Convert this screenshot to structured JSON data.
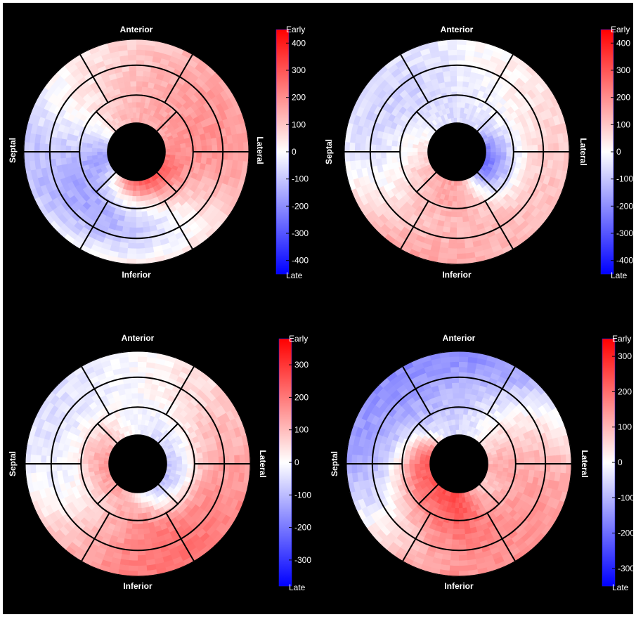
{
  "colors": {
    "background": "#000000",
    "early": "#ff0000",
    "late": "#0000ff",
    "neutral": "#ffffff",
    "segment_lines": "#000000"
  },
  "icons": [
    "bullseye-polar-map",
    "colorbar"
  ],
  "panels": [
    {
      "labels": {
        "anterior": "Anterior",
        "inferior": "Inferior",
        "septal": "Septal",
        "lateral": "Lateral"
      },
      "colorbar": {
        "top": "Early",
        "bottom": "Late",
        "ticks": [
          "400",
          "300",
          "200",
          "100",
          "0",
          "-100",
          "-200",
          "-300",
          "-400"
        ],
        "max": 450
      },
      "footer": "",
      "blobs": [
        {
          "a": 100,
          "w": 60,
          "r": 0.7,
          "v": -430
        },
        {
          "a": 115,
          "w": 60,
          "r": 0.8,
          "v": -380
        },
        {
          "a": 130,
          "w": 55,
          "r": 0.9,
          "v": -300
        },
        {
          "a": 150,
          "w": 90,
          "r": 0.8,
          "v": -110
        },
        {
          "a": 165,
          "w": 40,
          "r": 0.4,
          "v": -300
        },
        {
          "a": 200,
          "w": 60,
          "r": 0.6,
          "v": 20
        },
        {
          "a": 250,
          "w": 80,
          "r": 0.8,
          "v": 80
        },
        {
          "a": 280,
          "w": 70,
          "r": 0.4,
          "v": 150
        },
        {
          "a": 330,
          "w": 90,
          "r": 0.7,
          "v": 200
        },
        {
          "a": 30,
          "w": 80,
          "r": 0.7,
          "v": 260
        },
        {
          "a": 80,
          "w": 60,
          "r": 0.3,
          "v": 380
        },
        {
          "a": 120,
          "w": 40,
          "r": 0.97,
          "v": 420
        },
        {
          "a": 90,
          "w": 50,
          "r": 0.97,
          "v": 330
        }
      ]
    },
    {
      "labels": {
        "anterior": "Anterior",
        "inferior": "Inferior",
        "septal": "Septal",
        "lateral": "Lateral"
      },
      "colorbar": {
        "top": "Early",
        "bottom": "Late",
        "ticks": [
          "400",
          "300",
          "200",
          "100",
          "0",
          "-100",
          "-200",
          "-300",
          "-400"
        ],
        "max": 450
      },
      "footer": "",
      "blobs": [
        {
          "a": 180,
          "w": 120,
          "r": 0.8,
          "v": -200
        },
        {
          "a": 220,
          "w": 60,
          "r": 0.75,
          "v": -120
        },
        {
          "a": 200,
          "w": 70,
          "r": 0.4,
          "v": -80
        },
        {
          "a": 300,
          "w": 70,
          "r": 0.6,
          "v": -60
        },
        {
          "a": 20,
          "w": 40,
          "r": 0.3,
          "v": -300
        },
        {
          "a": 270,
          "w": 100,
          "r": 0.9,
          "v": 10
        },
        {
          "a": 330,
          "w": 80,
          "r": 0.8,
          "v": 60
        },
        {
          "a": 60,
          "w": 130,
          "r": 0.8,
          "v": 260
        },
        {
          "a": 110,
          "w": 50,
          "r": 0.4,
          "v": 220
        },
        {
          "a": 120,
          "w": 40,
          "r": 0.95,
          "v": 330
        },
        {
          "a": 170,
          "w": 50,
          "r": 0.3,
          "v": 160
        }
      ]
    },
    {
      "labels": {
        "anterior": "Anterior",
        "inferior": "Inferior",
        "septal": "Septal",
        "lateral": "Lateral"
      },
      "colorbar": {
        "top": "Early",
        "bottom": "Late",
        "ticks": [
          "300",
          "200",
          "100",
          "0",
          "-100",
          "-200",
          "-300"
        ],
        "max": 380
      },
      "footer": "",
      "blobs": [
        {
          "a": 175,
          "w": 80,
          "r": 0.8,
          "v": -170
        },
        {
          "a": 145,
          "w": 40,
          "r": 0.8,
          "v": -200
        },
        {
          "a": 250,
          "w": 90,
          "r": 0.8,
          "v": -30
        },
        {
          "a": 270,
          "w": 60,
          "r": 0.35,
          "v": -70
        },
        {
          "a": 20,
          "w": 50,
          "r": 0.3,
          "v": -120
        },
        {
          "a": 320,
          "w": 80,
          "r": 0.8,
          "v": 60
        },
        {
          "a": 40,
          "w": 90,
          "r": 0.75,
          "v": 220
        },
        {
          "a": 95,
          "w": 90,
          "r": 0.8,
          "v": 300
        },
        {
          "a": 125,
          "w": 40,
          "r": 0.9,
          "v": 350
        },
        {
          "a": 200,
          "w": 60,
          "r": 0.3,
          "v": 200
        }
      ]
    },
    {
      "labels": {
        "anterior": "Anterior",
        "inferior": "Inferior",
        "septal": "Septal",
        "lateral": "Lateral"
      },
      "colorbar": {
        "top": "Early",
        "bottom": "Late",
        "ticks": [
          "300",
          "200",
          "100",
          "0",
          "-100",
          "-200",
          "-300"
        ],
        "max": 350
      },
      "footer": "",
      "blobs": [
        {
          "a": 180,
          "w": 100,
          "r": 0.8,
          "v": -220
        },
        {
          "a": 150,
          "w": 45,
          "r": 0.8,
          "v": -150
        },
        {
          "a": 230,
          "w": 60,
          "r": 0.8,
          "v": -90
        },
        {
          "a": 280,
          "w": 50,
          "r": 0.9,
          "v": -250
        },
        {
          "a": 265,
          "w": 40,
          "r": 0.6,
          "v": -60
        },
        {
          "a": 330,
          "w": 60,
          "r": 0.7,
          "v": 40
        },
        {
          "a": 20,
          "w": 60,
          "r": 0.7,
          "v": 100
        },
        {
          "a": 60,
          "w": 80,
          "r": 0.75,
          "v": 240
        },
        {
          "a": 100,
          "w": 70,
          "r": 0.6,
          "v": 330
        },
        {
          "a": 120,
          "w": 40,
          "r": 0.95,
          "v": 300
        },
        {
          "a": 160,
          "w": 45,
          "r": 0.3,
          "v": 250
        },
        {
          "a": 45,
          "w": 25,
          "r": 0.45,
          "v": 10
        }
      ]
    }
  ]
}
